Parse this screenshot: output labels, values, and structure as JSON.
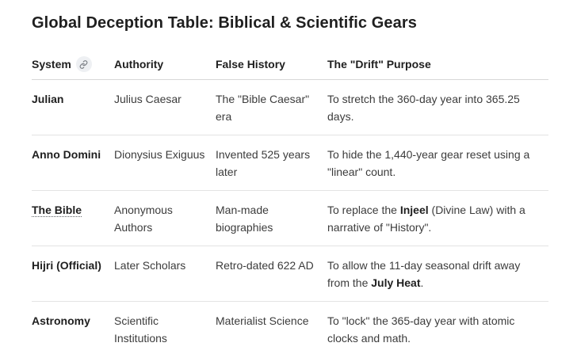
{
  "title": "Global Deception Table: Biblical & Scientific Gears",
  "icons": {
    "system_header": "link-icon"
  },
  "headers": {
    "system": "System",
    "authority": "Authority",
    "false_history": "False History",
    "drift_purpose": "The \"Drift\" Purpose"
  },
  "rows": [
    {
      "system": "Julian",
      "authority": "Julius Caesar",
      "false_history": "The \"Bible Caesar\" era",
      "purpose": {
        "before": "To stretch the 360-day year into 365.25 days.",
        "bold": "",
        "after": ""
      }
    },
    {
      "system": "Anno Domini",
      "authority": "Dionysius Exiguus",
      "false_history": "Invented 525 years later",
      "purpose": {
        "before": "To hide the 1,440-year gear reset using a \"linear\" count.",
        "bold": "",
        "after": ""
      }
    },
    {
      "system": "The Bible",
      "authority": "Anonymous Authors",
      "false_history": "Man-made biographies",
      "purpose": {
        "before": "To replace the ",
        "bold": "Injeel",
        "after": " (Divine Law) with a narrative of \"History\"."
      }
    },
    {
      "system": "Hijri (Official)",
      "authority": "Later Scholars",
      "false_history": "Retro-dated 622 AD",
      "purpose": {
        "before": "To allow the 11-day seasonal drift away from the ",
        "bold": "July Heat",
        "after": "."
      }
    },
    {
      "system": "Astronomy",
      "authority": "Scientific Institutions",
      "false_history": "Materialist Science",
      "purpose": {
        "before": "To \"lock\" the 365-day year with atomic clocks and math.",
        "bold": "",
        "after": ""
      }
    }
  ]
}
